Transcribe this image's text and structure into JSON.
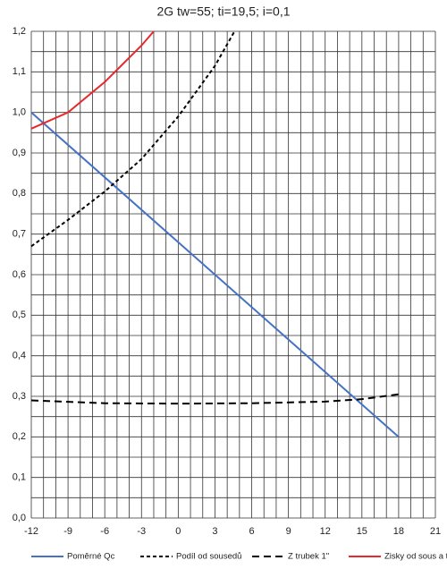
{
  "chart_data": {
    "type": "line",
    "title": "2G tw=55; ti=19,5; i=0,1",
    "xlim": [
      -12,
      21
    ],
    "ylim": [
      0,
      1.2
    ],
    "xticks": [
      -12,
      -9,
      -6,
      -3,
      0,
      3,
      6,
      9,
      12,
      15,
      18,
      21
    ],
    "yticks": [
      {
        "value": 0,
        "label": "0,0"
      },
      {
        "value": 0.1,
        "label": "0,1"
      },
      {
        "value": 0.2,
        "label": "0,2"
      },
      {
        "value": 0.3,
        "label": "0,3"
      },
      {
        "value": 0.4,
        "label": "0,4"
      },
      {
        "value": 0.5,
        "label": "0,5"
      },
      {
        "value": 0.6,
        "label": "0,6"
      },
      {
        "value": 0.7,
        "label": "0,7"
      },
      {
        "value": 0.8,
        "label": "0,8"
      },
      {
        "value": 0.9,
        "label": "0,9"
      },
      {
        "value": 1.0,
        "label": "1,0"
      },
      {
        "value": 1.1,
        "label": "1,1"
      },
      {
        "value": 1.2,
        "label": "1,2"
      }
    ],
    "xgrid": [
      -12,
      -11,
      -10,
      -9,
      -8,
      -7,
      -6,
      -5,
      -4,
      -3,
      -2,
      -1,
      0,
      1,
      2,
      3,
      4,
      5,
      6,
      7,
      8,
      9,
      10,
      11,
      12,
      13,
      14,
      15,
      16,
      17,
      18,
      19,
      20,
      21
    ],
    "ygrid": [
      0,
      0.05,
      0.1,
      0.15,
      0.2,
      0.25,
      0.3,
      0.35,
      0.4,
      0.45,
      0.5,
      0.55,
      0.6,
      0.65,
      0.7,
      0.75,
      0.8,
      0.85,
      0.9,
      0.95,
      1.0,
      1.05,
      1.1,
      1.15,
      1.2
    ],
    "grid": true,
    "legend": "bottom",
    "series": [
      {
        "name": "Poměrné Qc",
        "color": "#4472c4",
        "dash": "solid",
        "x": [
          -12,
          18
        ],
        "values": [
          1.0,
          0.2
        ]
      },
      {
        "name": "Podíl od sousedů",
        "color": "#000000",
        "dash": "short",
        "x": [
          -12,
          -9,
          -6,
          -3,
          0,
          3,
          4.6
        ],
        "values": [
          0.67,
          0.735,
          0.805,
          0.885,
          0.99,
          1.115,
          1.2
        ]
      },
      {
        "name": "Z trubek 1\"",
        "color": "#000000",
        "dash": "long",
        "x": [
          -12,
          -6,
          0,
          6,
          12,
          15,
          18
        ],
        "values": [
          0.29,
          0.283,
          0.282,
          0.283,
          0.287,
          0.293,
          0.305
        ]
      },
      {
        "name": "Zisky od sous a trubek",
        "color": "#e8282b",
        "dash": "solid",
        "x": [
          -12,
          -9,
          -6,
          -3,
          -2
        ],
        "values": [
          0.96,
          1.0,
          1.075,
          1.165,
          1.2
        ]
      }
    ]
  }
}
